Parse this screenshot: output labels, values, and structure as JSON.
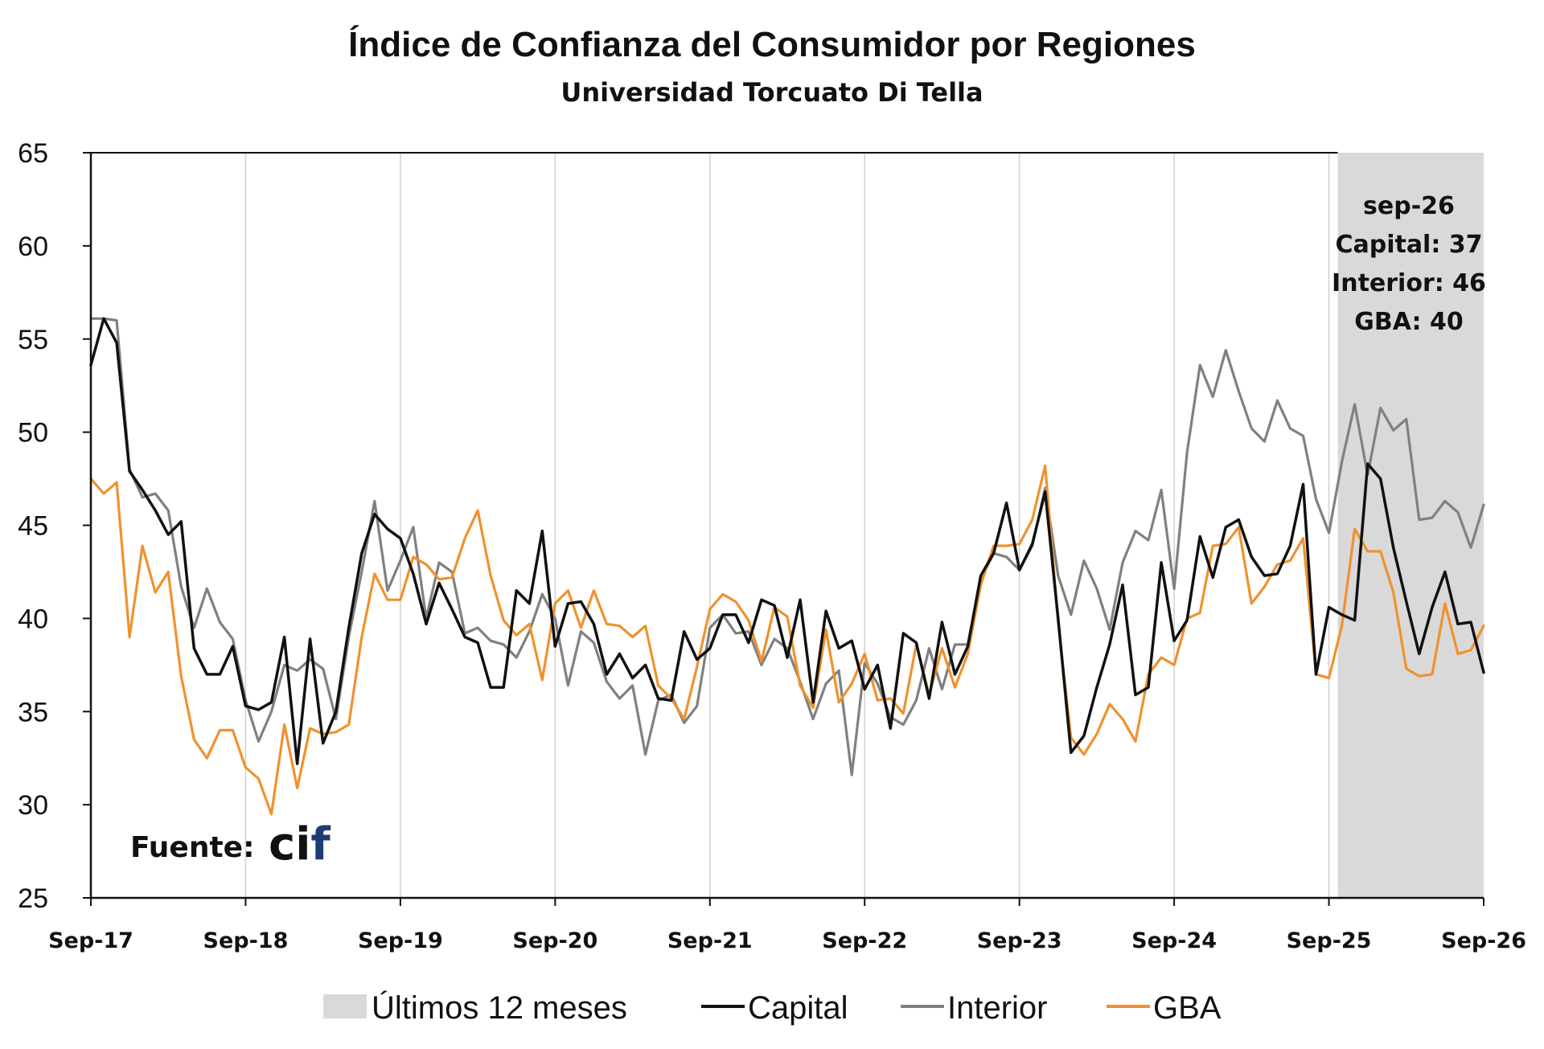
{
  "chart_data": {
    "type": "line",
    "title": "Índice de Confianza del Consumidor por Regiones",
    "subtitle": "Universidad Torcuato Di Tella",
    "xlabel": "",
    "ylabel": "",
    "ylim": [
      25,
      65
    ],
    "yticks": [
      "65",
      "60",
      "55",
      "50",
      "45",
      "40",
      "35",
      "30",
      "25"
    ],
    "xticks": [
      "Sep-17",
      "Sep-18",
      "Sep-19",
      "Sep-20",
      "Sep-21",
      "Sep-22",
      "Sep-23",
      "Sep-24",
      "Sep-25",
      "Sep-26"
    ],
    "grid": "vertical",
    "highlight": {
      "label": "Últimos 12 meses",
      "from_month": 97,
      "to_month": 108,
      "color": "#d9d9d9"
    },
    "annotation": [
      "sep-26",
      "Capital: 37",
      "Interior: 46",
      "GBA: 40"
    ],
    "source_label": "Fuente:",
    "source_logo": {
      "text": [
        "ci",
        "f"
      ],
      "colors": [
        "#111111",
        "#1f3b73"
      ]
    },
    "legend": [
      "Últimos 12 meses",
      "Capital",
      "Interior",
      "GBA"
    ],
    "series": [
      {
        "name": "Capital",
        "color": "#111111",
        "values": [
          53.6,
          56.1,
          54.8,
          47.9,
          46.9,
          45.8,
          44.5,
          45.2,
          38.4,
          37.0,
          37.0,
          38.5,
          35.3,
          35.1,
          35.5,
          39.0,
          32.2,
          38.9,
          33.3,
          35.0,
          39.5,
          43.5,
          45.6,
          44.8,
          44.3,
          42.4,
          39.7,
          41.9,
          40.5,
          39.0,
          38.7,
          36.3,
          36.3,
          41.5,
          40.8,
          44.7,
          38.5,
          40.8,
          40.9,
          39.7,
          37.0,
          38.1,
          36.8,
          37.5,
          35.7,
          35.6,
          39.3,
          37.8,
          38.4,
          40.2,
          40.2,
          38.7,
          41.0,
          40.7,
          37.9,
          41.0,
          35.5,
          40.4,
          38.4,
          38.8,
          36.2,
          37.5,
          34.1,
          39.2,
          38.7,
          35.7,
          39.8,
          37.0,
          38.5,
          42.3,
          43.5,
          46.2,
          42.6,
          44.0,
          46.8,
          40.0,
          32.8,
          33.7,
          36.3,
          38.6,
          41.8,
          35.9,
          36.3,
          43.0,
          38.8,
          39.9,
          44.4,
          42.2,
          44.9,
          45.3,
          43.3,
          42.3,
          42.4,
          43.9,
          47.2,
          37.0,
          40.6,
          40.2,
          39.9,
          48.3,
          47.5,
          43.8,
          40.9,
          38.1,
          40.6,
          42.5,
          39.7,
          39.8,
          37.1
        ]
      },
      {
        "name": "Interior",
        "color": "#808080",
        "values": [
          56.1,
          56.1,
          56.0,
          48.0,
          46.5,
          46.7,
          45.8,
          41.7,
          39.5,
          41.6,
          39.8,
          38.9,
          35.6,
          33.4,
          35.0,
          37.5,
          37.2,
          37.8,
          37.3,
          34.6,
          39.0,
          42.5,
          46.3,
          41.5,
          43.1,
          44.9,
          40.0,
          43.0,
          42.5,
          39.2,
          39.5,
          38.8,
          38.6,
          37.9,
          39.3,
          41.3,
          40.0,
          36.4,
          39.3,
          38.7,
          36.6,
          35.7,
          36.4,
          32.7,
          35.6,
          35.9,
          34.4,
          35.3,
          39.5,
          40.2,
          39.2,
          39.3,
          37.5,
          38.9,
          38.4,
          36.6,
          34.6,
          36.5,
          37.2,
          31.6,
          37.6,
          36.5,
          34.7,
          34.3,
          35.6,
          38.4,
          36.2,
          38.6,
          38.6,
          42.1,
          43.5,
          43.3,
          42.6,
          43.9,
          47.0,
          42.3,
          40.2,
          43.1,
          41.6,
          39.4,
          43.0,
          44.7,
          44.2,
          46.9,
          41.6,
          48.9,
          53.6,
          51.9,
          54.4,
          52.2,
          50.2,
          49.5,
          51.7,
          50.2,
          49.8,
          46.4,
          44.6,
          48.4,
          51.5,
          47.7,
          51.3,
          50.1,
          50.7,
          45.3,
          45.4,
          46.3,
          45.7,
          43.8,
          46.1
        ]
      },
      {
        "name": "GBA",
        "color": "#f0912e",
        "values": [
          47.5,
          46.7,
          47.3,
          39.0,
          43.9,
          41.4,
          42.5,
          36.9,
          33.5,
          32.5,
          34.0,
          34.0,
          32.0,
          31.4,
          29.5,
          34.3,
          30.9,
          34.1,
          33.8,
          33.9,
          34.3,
          39.0,
          42.4,
          41.0,
          41.0,
          43.3,
          42.9,
          42.1,
          42.2,
          44.3,
          45.8,
          42.3,
          39.9,
          39.1,
          39.7,
          36.7,
          40.8,
          41.5,
          39.5,
          41.5,
          39.7,
          39.6,
          39.0,
          39.6,
          36.4,
          35.7,
          34.6,
          37.4,
          40.5,
          41.3,
          40.9,
          39.9,
          37.7,
          40.6,
          40.1,
          36.4,
          35.2,
          39.4,
          35.5,
          36.5,
          38.1,
          35.6,
          35.7,
          34.9,
          38.6,
          35.9,
          38.4,
          36.3,
          38.1,
          41.8,
          43.9,
          43.9,
          44.0,
          45.3,
          48.2,
          39.8,
          33.6,
          32.7,
          33.8,
          35.4,
          34.6,
          33.4,
          37.0,
          37.9,
          37.5,
          40.0,
          40.3,
          43.9,
          44.0,
          44.9,
          40.8,
          41.7,
          42.9,
          43.1,
          44.3,
          37.0,
          36.8,
          39.6,
          44.8,
          43.6,
          43.6,
          41.4,
          37.3,
          36.9,
          37.0,
          40.8,
          38.1,
          38.3,
          39.6
        ]
      }
    ]
  }
}
